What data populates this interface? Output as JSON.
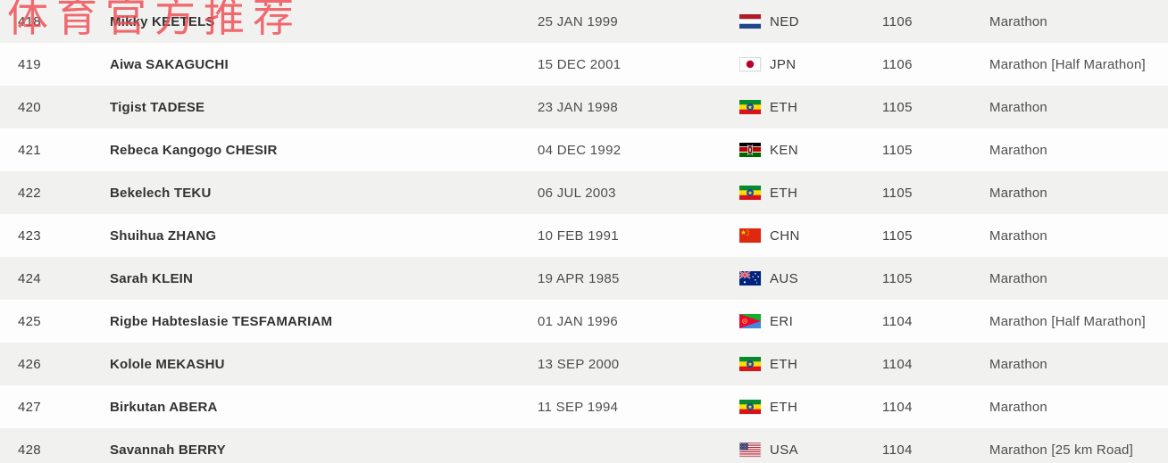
{
  "watermark": {
    "text": "体育官方推荐",
    "color": "#ee4a50"
  },
  "colors": {
    "row_shade_gray": "#f1f1f0",
    "row_shade_white": "#fdfdfd",
    "name_text": "#333333",
    "secondary_text": "#4d4d4d",
    "watermark_red": "#ee4a50"
  },
  "table": {
    "columns": [
      "rank",
      "name",
      "date_of_birth",
      "country",
      "score",
      "event"
    ],
    "rows": [
      {
        "rank": "418",
        "name": "Mikky KEETELS",
        "dob": "25 JAN 1999",
        "flag": "ned-flag-icon",
        "country": "NED",
        "score": "1106",
        "event": "Marathon"
      },
      {
        "rank": "419",
        "name": "Aiwa SAKAGUCHI",
        "dob": "15 DEC 2001",
        "flag": "jpn-flag-icon",
        "country": "JPN",
        "score": "1106",
        "event": "Marathon [Half Marathon]"
      },
      {
        "rank": "420",
        "name": "Tigist TADESE",
        "dob": "23 JAN 1998",
        "flag": "eth-flag-icon",
        "country": "ETH",
        "score": "1105",
        "event": "Marathon"
      },
      {
        "rank": "421",
        "name": "Rebeca Kangogo CHESIR",
        "dob": "04 DEC 1992",
        "flag": "ken-flag-icon",
        "country": "KEN",
        "score": "1105",
        "event": "Marathon"
      },
      {
        "rank": "422",
        "name": "Bekelech TEKU",
        "dob": "06 JUL 2003",
        "flag": "eth-flag-icon",
        "country": "ETH",
        "score": "1105",
        "event": "Marathon"
      },
      {
        "rank": "423",
        "name": "Shuihua ZHANG",
        "dob": "10 FEB 1991",
        "flag": "chn-flag-icon",
        "country": "CHN",
        "score": "1105",
        "event": "Marathon"
      },
      {
        "rank": "424",
        "name": "Sarah KLEIN",
        "dob": "19 APR 1985",
        "flag": "aus-flag-icon",
        "country": "AUS",
        "score": "1105",
        "event": "Marathon"
      },
      {
        "rank": "425",
        "name": "Rigbe Habteslasie TESFAMARIAM",
        "dob": "01 JAN 1996",
        "flag": "eri-flag-icon",
        "country": "ERI",
        "score": "1104",
        "event": "Marathon [Half Marathon]"
      },
      {
        "rank": "426",
        "name": "Kolole MEKASHU",
        "dob": "13 SEP 2000",
        "flag": "eth-flag-icon",
        "country": "ETH",
        "score": "1104",
        "event": "Marathon"
      },
      {
        "rank": "427",
        "name": "Birkutan ABERA",
        "dob": "11 SEP 1994",
        "flag": "eth-flag-icon",
        "country": "ETH",
        "score": "1104",
        "event": "Marathon"
      },
      {
        "rank": "428",
        "name": "Savannah BERRY",
        "dob": "",
        "flag": "usa-flag-icon",
        "country": "USA",
        "score": "1104",
        "event": "Marathon [25 km Road]"
      }
    ]
  }
}
